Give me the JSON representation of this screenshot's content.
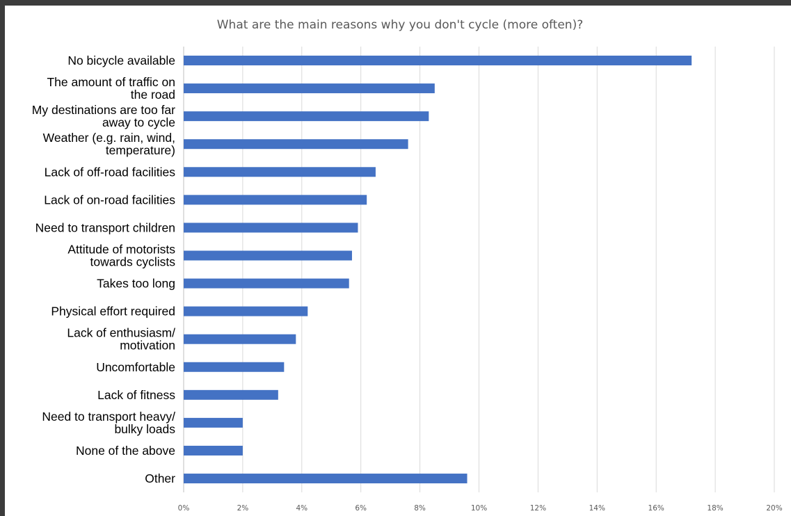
{
  "chart_data": {
    "type": "bar",
    "orientation": "horizontal",
    "title": "What are the main reasons why you don't cycle (more often)?",
    "xlabel": "",
    "ylabel": "",
    "categories": [
      "No bicycle available",
      "The amount of traffic on the road",
      "My destinations are too far away to cycle",
      "Weather (e.g. rain, wind, temperature)",
      "Lack of off-road facilities",
      "Lack of on-road facilities",
      "Need to transport children",
      "Attitude of motorists towards cyclists",
      "Takes too long",
      "Physical effort required",
      "Lack of enthusiasm/ motivation",
      "Uncomfortable",
      "Lack of fitness",
      "Need to transport heavy/ bulky loads",
      "None of the above",
      "Other"
    ],
    "category_lines": [
      [
        "No bicycle available"
      ],
      [
        "The amount of traffic on",
        "the road"
      ],
      [
        "My destinations are too far",
        "away to cycle"
      ],
      [
        "Weather (e.g. rain, wind,",
        "temperature)"
      ],
      [
        "Lack of off-road facilities"
      ],
      [
        "Lack of on-road facilities"
      ],
      [
        "Need to transport children"
      ],
      [
        "Attitude of motorists",
        "towards cyclists"
      ],
      [
        "Takes too long"
      ],
      [
        "Physical effort required"
      ],
      [
        "Lack of enthusiasm/",
        "motivation"
      ],
      [
        "Uncomfortable"
      ],
      [
        "Lack of fitness"
      ],
      [
        "Need to transport heavy/",
        "bulky loads"
      ],
      [
        "None of the above"
      ],
      [
        "Other"
      ]
    ],
    "values": [
      17.2,
      8.5,
      8.3,
      7.6,
      6.5,
      6.2,
      5.9,
      5.7,
      5.6,
      4.2,
      3.8,
      3.4,
      3.2,
      2.0,
      2.0,
      9.6
    ],
    "x_ticks": [
      0,
      2,
      4,
      6,
      8,
      10,
      12,
      14,
      16,
      18,
      20
    ],
    "x_tick_labels": [
      "0%",
      "2%",
      "4%",
      "6%",
      "8%",
      "10%",
      "12%",
      "14%",
      "16%",
      "18%",
      "20%"
    ],
    "xlim": [
      0,
      20
    ],
    "grid": true,
    "legend": "none",
    "bar_color": "#4472c4",
    "frame_color": "#3c3c3c"
  }
}
